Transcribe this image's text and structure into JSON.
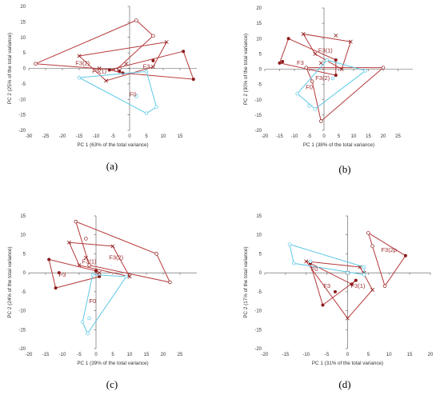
{
  "colors": {
    "red": "#b5393b",
    "red_dark": "#8b1a1a",
    "cyan": "#5cc8e6",
    "axis": "#555555",
    "text": "#333333"
  },
  "chart_data": [
    {
      "type": "scatter",
      "panel_label": "(a)",
      "xlabel": "PC 1 (63% of the total variance)",
      "ylabel": "PC 2 (25% of the total variance)",
      "xlim": [
        -30,
        20
      ],
      "ylim": [
        -20,
        20
      ],
      "xticks": [
        -30,
        -25,
        -20,
        -15,
        -10,
        -5,
        0,
        5,
        10,
        15
      ],
      "yticks": [
        -20,
        -15,
        -10,
        -5,
        0,
        5,
        10,
        15,
        20
      ],
      "series": [
        {
          "name": "F3(2)",
          "color": "red",
          "label_at": [
            -14,
            1
          ],
          "hull": [
            [
              -28,
              1.5
            ],
            [
              2,
              15.5
            ],
            [
              7,
              10.5
            ],
            [
              -4,
              -0.5
            ]
          ],
          "points": [
            [
              -28,
              1.5
            ],
            [
              2,
              15.5
            ],
            [
              7,
              10.5
            ],
            [
              -4,
              -0.5
            ],
            [
              -3,
              0
            ]
          ],
          "markers": [
            "o",
            "o",
            "o",
            "o",
            "o"
          ]
        },
        {
          "name": "F3(1)",
          "color": "red",
          "label_at": [
            -9,
            -1.5
          ],
          "hull": [
            [
              -15,
              4
            ],
            [
              11,
              8.5
            ],
            [
              7,
              0.5
            ],
            [
              -7,
              -4
            ]
          ],
          "points": [
            [
              -15,
              4
            ],
            [
              11,
              8.5
            ],
            [
              7,
              0.5
            ],
            [
              -7,
              -4
            ],
            [
              -1,
              1.5
            ],
            [
              -9,
              0
            ]
          ],
          "markers": [
            "x",
            "x",
            "x",
            "x",
            "x",
            "x"
          ]
        },
        {
          "name": "F3",
          "color": "red",
          "label_at": [
            5,
            0
          ],
          "hull": [
            [
              -6,
              -0.5
            ],
            [
              16,
              5.5
            ],
            [
              19,
              -3.5
            ],
            [
              -2,
              -1.5
            ]
          ],
          "points": [
            [
              -6,
              -0.5
            ],
            [
              16,
              5.5
            ],
            [
              19,
              -3.5
            ],
            [
              -2,
              -1.5
            ],
            [
              7,
              2.5
            ],
            [
              -3,
              -1
            ]
          ],
          "markers": [
            "dot",
            "dot",
            "dot",
            "dot",
            "dot",
            "dot"
          ]
        },
        {
          "name": "F0",
          "color": "cyan",
          "label_at": [
            1,
            -9
          ],
          "hull": [
            [
              -15,
              -3
            ],
            [
              5,
              -1
            ],
            [
              8,
              -12.5
            ],
            [
              5,
              -14.5
            ]
          ],
          "points": [
            [
              -15,
              -3
            ],
            [
              5,
              -1
            ],
            [
              8,
              -12.5
            ],
            [
              5,
              -14.5
            ],
            [
              2,
              -9
            ]
          ],
          "markers": [
            "o",
            "o",
            "o",
            "o",
            "o"
          ]
        }
      ]
    },
    {
      "type": "scatter",
      "panel_label": "(b)",
      "xlabel": "PC 1 (38% of the total variance)",
      "ylabel": "PC 2 (30% of the total variance)",
      "xlim": [
        -20,
        30
      ],
      "ylim": [
        -20,
        20
      ],
      "xticks": [
        -20,
        -15,
        -10,
        -5,
        0,
        5,
        10,
        15,
        20,
        25
      ],
      "yticks": [
        -20,
        -15,
        -10,
        -5,
        0,
        5,
        10,
        15,
        20
      ],
      "series": [
        {
          "name": "F3(1)",
          "color": "red",
          "label_at": [
            0.5,
            5.5
          ],
          "hull": [
            [
              -7,
              11.5
            ],
            [
              9,
              9
            ],
            [
              6,
              0
            ],
            [
              -3,
              5
            ]
          ],
          "points": [
            [
              -7,
              11.5
            ],
            [
              4,
              11
            ],
            [
              9,
              9
            ],
            [
              6,
              0
            ],
            [
              -3,
              5
            ],
            [
              -1,
              2
            ]
          ],
          "markers": [
            "x",
            "x",
            "x",
            "x",
            "x",
            "x"
          ]
        },
        {
          "name": "F3",
          "color": "red",
          "label_at": [
            -8,
            1.5
          ],
          "hull": [
            [
              -12,
              10
            ],
            [
              4,
              3
            ],
            [
              4,
              -2
            ],
            [
              -15,
              2
            ]
          ],
          "points": [
            [
              -12,
              10
            ],
            [
              4,
              3
            ],
            [
              4,
              -2
            ],
            [
              -15,
              2
            ],
            [
              -14,
              2.5
            ]
          ],
          "markers": [
            "dot",
            "dot",
            "dot",
            "dot",
            "dot"
          ]
        },
        {
          "name": "F3(2)",
          "color": "red",
          "label_at": [
            -0.5,
            -3.5
          ],
          "hull": [
            [
              -6,
              0.5
            ],
            [
              20,
              0.5
            ],
            [
              -1,
              -17
            ],
            [
              -4,
              -4
            ]
          ],
          "points": [
            [
              -6,
              0.5
            ],
            [
              20,
              0.5
            ],
            [
              -1,
              -17
            ],
            [
              -4,
              -4
            ]
          ],
          "markers": [
            "o",
            "o",
            "o",
            "o"
          ]
        },
        {
          "name": "F0",
          "color": "cyan",
          "label_at": [
            -5,
            -6.5
          ],
          "hull": [
            [
              -9,
              -8
            ],
            [
              1,
              3
            ],
            [
              14,
              -0.5
            ],
            [
              -3,
              -13
            ]
          ],
          "points": [
            [
              -9,
              -8
            ],
            [
              1,
              3
            ],
            [
              14,
              -0.5
            ],
            [
              -3,
              -13
            ],
            [
              -5,
              -12
            ],
            [
              3,
              -3
            ]
          ],
          "markers": [
            "o",
            "o",
            "o",
            "o",
            "o",
            "o"
          ]
        }
      ]
    },
    {
      "type": "scatter",
      "panel_label": "(c)",
      "xlabel": "PC 1 (39% of the total variance)",
      "ylabel": "PC 2 (24% of the total variance)",
      "xlim": [
        -20,
        30
      ],
      "ylim": [
        -20,
        15
      ],
      "xticks": [
        -20,
        -15,
        -10,
        -5,
        0,
        5,
        10,
        15,
        20,
        25
      ],
      "yticks": [
        -20,
        -15,
        -10,
        -5,
        0,
        5,
        10,
        15
      ],
      "series": [
        {
          "name": "F3(2)",
          "color": "red",
          "label_at": [
            6,
            3.5
          ],
          "hull": [
            [
              -6,
              13.5
            ],
            [
              18,
              5
            ],
            [
              22,
              -2.5
            ],
            [
              -2,
              2
            ]
          ],
          "points": [
            [
              -6,
              13.5
            ],
            [
              -3,
              9
            ],
            [
              18,
              5
            ],
            [
              22,
              -2.5
            ],
            [
              -2,
              2
            ]
          ],
          "markers": [
            "o",
            "o",
            "o",
            "o",
            "o"
          ]
        },
        {
          "name": "F3(1)",
          "color": "red",
          "label_at": [
            -2,
            2.5
          ],
          "hull": [
            [
              -8,
              8
            ],
            [
              5,
              7
            ],
            [
              10,
              -1
            ],
            [
              -5,
              2
            ]
          ],
          "points": [
            [
              -8,
              8
            ],
            [
              5,
              7
            ],
            [
              10,
              -1
            ],
            [
              -5,
              2
            ],
            [
              1,
              0
            ],
            [
              -3,
              4
            ]
          ],
          "markers": [
            "x",
            "x",
            "x",
            "x",
            "x",
            "x"
          ]
        },
        {
          "name": "F3",
          "color": "red",
          "label_at": [
            -10,
            -1
          ],
          "hull": [
            [
              -14,
              3.5
            ],
            [
              0,
              0.5
            ],
            [
              1,
              -1
            ],
            [
              -12,
              -4
            ]
          ],
          "points": [
            [
              -14,
              3.5
            ],
            [
              0,
              0.5
            ],
            [
              1,
              -1
            ],
            [
              -12,
              -4
            ],
            [
              -11,
              0
            ]
          ],
          "markers": [
            "dot",
            "dot",
            "dot",
            "dot",
            "dot"
          ]
        },
        {
          "name": "F0",
          "color": "cyan",
          "label_at": [
            -1,
            -8
          ],
          "hull": [
            [
              -1,
              -0.5
            ],
            [
              9,
              -1
            ],
            [
              -2.5,
              -16
            ],
            [
              -4,
              -13
            ]
          ],
          "points": [
            [
              -1,
              -0.5
            ],
            [
              9,
              -1
            ],
            [
              -2.5,
              -16
            ],
            [
              -4,
              -13
            ],
            [
              -2,
              -12
            ]
          ],
          "markers": [
            "o",
            "o",
            "o",
            "o",
            "o"
          ]
        }
      ]
    },
    {
      "type": "scatter",
      "panel_label": "(d)",
      "xlabel": "PC 1 (31% of the total variance)",
      "ylabel": "PC 2 (17% of the total variance)",
      "xlim": [
        -20,
        20
      ],
      "ylim": [
        -20,
        15
      ],
      "xticks": [
        -20,
        -15,
        -10,
        -5,
        0,
        5,
        10,
        15,
        20
      ],
      "yticks": [
        -20,
        -15,
        -10,
        -5,
        0,
        5,
        10,
        15
      ],
      "series": [
        {
          "name": "F3(2p",
          "color": "red",
          "label_at": [
            10,
            5.5
          ],
          "hull": [
            [
              5,
              10.5
            ],
            [
              14,
              4.5
            ],
            [
              9,
              -3.5
            ]
          ],
          "points": [
            [
              5,
              10.5
            ],
            [
              6,
              7
            ],
            [
              14,
              4.5
            ],
            [
              9,
              -3.5
            ]
          ],
          "markers": [
            "o",
            "o",
            "dot",
            "o"
          ]
        },
        {
          "name": "F3(1)",
          "color": "red",
          "label_at": [
            2.5,
            -4
          ],
          "hull": [
            [
              -10,
              3
            ],
            [
              3,
              1.5
            ],
            [
              6,
              -4.5
            ],
            [
              0,
              -12
            ]
          ],
          "points": [
            [
              -10,
              3
            ],
            [
              3,
              1.5
            ],
            [
              6,
              -4.5
            ],
            [
              0,
              -12
            ],
            [
              0,
              0
            ],
            [
              4,
              0
            ]
          ],
          "markers": [
            "x",
            "x",
            "x",
            "x",
            "x",
            "x"
          ]
        },
        {
          "name": "F3",
          "color": "red",
          "label_at": [
            -5,
            -4
          ],
          "hull": [
            [
              -9,
              2.5
            ],
            [
              1,
              -3
            ],
            [
              2,
              -2
            ],
            [
              -6,
              -8.5
            ]
          ],
          "points": [
            [
              -9,
              2.5
            ],
            [
              1,
              -3
            ],
            [
              2,
              -2
            ],
            [
              -6,
              -8.5
            ],
            [
              -3,
              -5
            ]
          ],
          "markers": [
            "dot",
            "dot",
            "dot",
            "dot",
            "dot"
          ]
        },
        {
          "name": "F0",
          "color": "cyan",
          "label_at": [
            -8,
            0.5
          ],
          "hull": [
            [
              -14,
              7.5
            ],
            [
              4,
              1.5
            ],
            [
              4,
              -0.5
            ],
            [
              -13,
              2.5
            ]
          ],
          "points": [
            [
              -14,
              7.5
            ],
            [
              4,
              1.5
            ],
            [
              4,
              -0.5
            ],
            [
              -13,
              2.5
            ],
            [
              -9,
              3
            ],
            [
              0,
              0
            ]
          ],
          "markers": [
            "o",
            "o",
            "o",
            "o",
            "o",
            "o"
          ]
        }
      ]
    }
  ]
}
